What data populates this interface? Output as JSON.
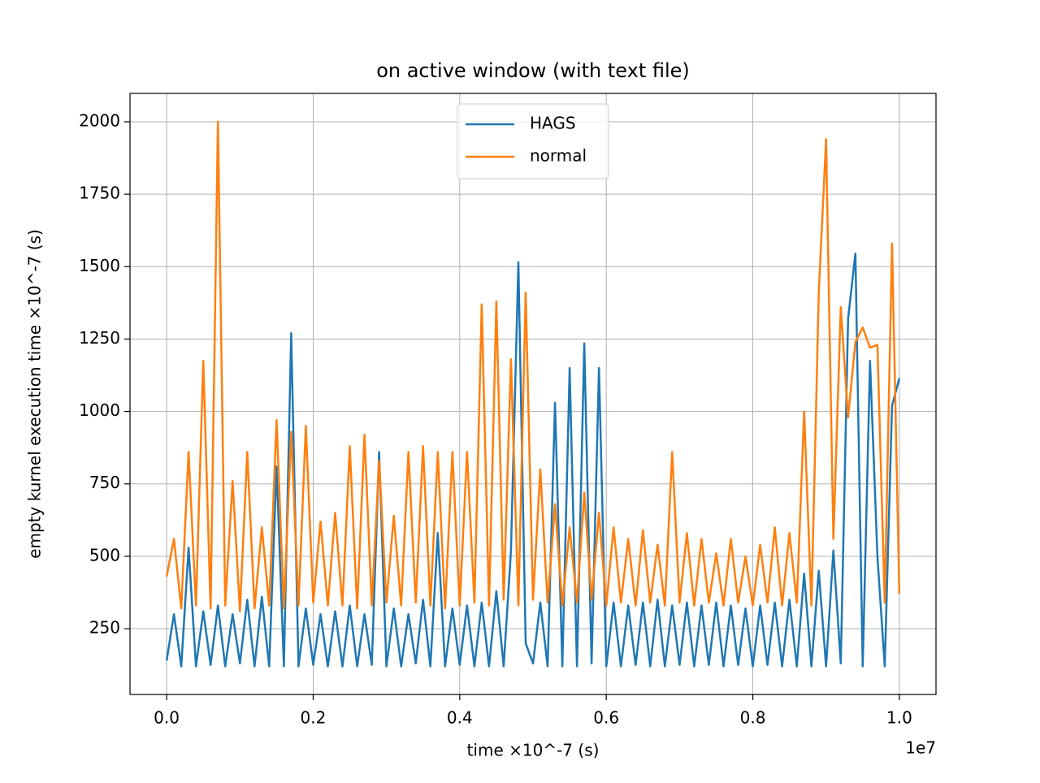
{
  "chart_data": {
    "type": "line",
    "title": "on active window (with text file)",
    "xlabel": "time ×10^-7 (s)",
    "ylabel": "empty kurnel execution time ×10^-7 (s)",
    "x_offset_label": "1e7",
    "x": [
      0,
      100000,
      200000,
      300000,
      400000,
      500000,
      600000,
      700000,
      800000,
      900000,
      1000000,
      1100000,
      1200000,
      1300000,
      1400000,
      1500000,
      1600000,
      1700000,
      1800000,
      1900000,
      2000000,
      2100000,
      2200000,
      2300000,
      2400000,
      2500000,
      2600000,
      2700000,
      2800000,
      2900000,
      3000000,
      3100000,
      3200000,
      3300000,
      3400000,
      3500000,
      3600000,
      3700000,
      3800000,
      3900000,
      4000000,
      4100000,
      4200000,
      4300000,
      4400000,
      4500000,
      4600000,
      4700000,
      4800000,
      4900000,
      5000000,
      5100000,
      5200000,
      5300000,
      5400000,
      5500000,
      5600000,
      5700000,
      5800000,
      5900000,
      6000000,
      6100000,
      6200000,
      6300000,
      6400000,
      6500000,
      6600000,
      6700000,
      6800000,
      6900000,
      7000000,
      7100000,
      7200000,
      7300000,
      7400000,
      7500000,
      7600000,
      7700000,
      7800000,
      7900000,
      8000000,
      8100000,
      8200000,
      8300000,
      8400000,
      8500000,
      8600000,
      8700000,
      8800000,
      8900000,
      9000000,
      9100000,
      9200000,
      9300000,
      9400000,
      9500000,
      9600000,
      9700000,
      9800000,
      9900000,
      10000000
    ],
    "series": [
      {
        "name": "HAGS",
        "color": "#1f77b4",
        "values": [
          140,
          300,
          120,
          530,
          120,
          310,
          125,
          330,
          120,
          300,
          130,
          350,
          120,
          360,
          120,
          810,
          120,
          1270,
          120,
          320,
          125,
          300,
          120,
          310,
          120,
          330,
          120,
          300,
          125,
          860,
          120,
          320,
          120,
          300,
          130,
          350,
          120,
          580,
          120,
          320,
          125,
          330,
          120,
          340,
          120,
          380,
          120,
          520,
          1515,
          200,
          130,
          340,
          120,
          1030,
          120,
          1150,
          120,
          1235,
          130,
          1150,
          120,
          340,
          120,
          330,
          125,
          340,
          120,
          350,
          120,
          330,
          125,
          340,
          120,
          330,
          125,
          340,
          120,
          330,
          125,
          320,
          120,
          330,
          125,
          340,
          120,
          350,
          120,
          440,
          120,
          450,
          120,
          520,
          130,
          1320,
          1545,
          120,
          1175,
          500,
          120,
          1020,
          1115
        ]
      },
      {
        "name": "normal",
        "color": "#ff7f0e",
        "values": [
          430,
          560,
          320,
          860,
          330,
          1175,
          320,
          2000,
          330,
          760,
          310,
          860,
          320,
          600,
          330,
          970,
          320,
          930,
          330,
          950,
          340,
          620,
          330,
          650,
          330,
          880,
          320,
          920,
          330,
          830,
          340,
          640,
          330,
          860,
          340,
          880,
          330,
          860,
          320,
          860,
          330,
          860,
          340,
          1370,
          330,
          1380,
          350,
          1180,
          330,
          1410,
          350,
          800,
          340,
          680,
          330,
          600,
          340,
          720,
          350,
          650,
          330,
          600,
          340,
          560,
          330,
          590,
          340,
          540,
          330,
          860,
          340,
          580,
          330,
          560,
          340,
          510,
          330,
          560,
          340,
          500,
          330,
          540,
          340,
          600,
          330,
          580,
          340,
          1000,
          330,
          1410,
          1940,
          560,
          1360,
          980,
          1240,
          1290,
          1220,
          1230,
          340,
          1580,
          370
        ]
      }
    ],
    "xlim": [
      -500000,
      10500000
    ],
    "xticks": [
      {
        "value": 0,
        "label": "0.0"
      },
      {
        "value": 2000000,
        "label": "0.2"
      },
      {
        "value": 4000000,
        "label": "0.4"
      },
      {
        "value": 6000000,
        "label": "0.6"
      },
      {
        "value": 8000000,
        "label": "0.8"
      },
      {
        "value": 10000000,
        "label": "1.0"
      }
    ],
    "ylim": [
      23,
      2098
    ],
    "yticks": [
      250,
      500,
      750,
      1000,
      1250,
      1500,
      1750,
      2000
    ],
    "grid": true,
    "legend": "upper center"
  }
}
